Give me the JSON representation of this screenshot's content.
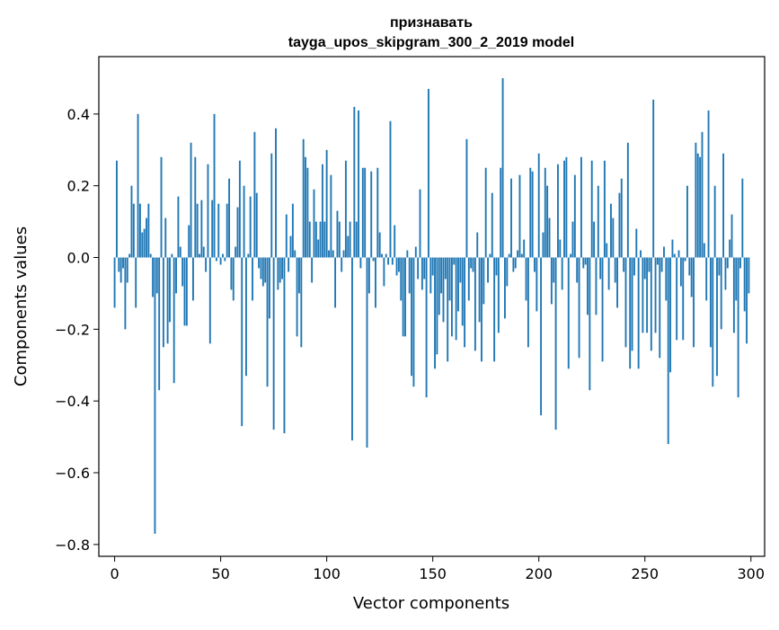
{
  "chart_data": {
    "type": "bar",
    "title_line1": "признавать",
    "title_line2": "tayga_upos_skipgram_300_2_2019 model",
    "xlabel": "Vector components",
    "ylabel": "Components values",
    "xlim": [
      -7.45,
      306.45
    ],
    "ylim": [
      -0.833,
      0.56
    ],
    "xticks": [
      0,
      50,
      100,
      150,
      200,
      250,
      300
    ],
    "xtick_labels": [
      "0",
      "50",
      "100",
      "150",
      "200",
      "250",
      "300"
    ],
    "yticks": [
      -0.8,
      -0.6,
      -0.4,
      -0.2,
      0.0,
      0.2,
      0.4
    ],
    "ytick_labels": [
      "−0.8",
      "−0.6",
      "−0.4",
      "−0.2",
      "0.0",
      "0.2",
      "0.4"
    ],
    "bar_color": "#1f77b4",
    "grid": false,
    "values": [
      -0.14,
      0.27,
      -0.04,
      -0.07,
      -0.03,
      -0.2,
      -0.07,
      0.01,
      0.2,
      0.15,
      -0.14,
      0.4,
      0.15,
      0.07,
      0.08,
      0.11,
      0.15,
      0.01,
      -0.11,
      -0.77,
      -0.1,
      -0.37,
      0.28,
      -0.25,
      0.11,
      -0.24,
      -0.18,
      0.01,
      -0.35,
      -0.1,
      0.17,
      0.03,
      -0.08,
      -0.19,
      -0.19,
      0.09,
      0.32,
      -0.12,
      0.28,
      0.15,
      0.01,
      0.16,
      0.03,
      -0.04,
      0.26,
      -0.24,
      0.16,
      0.4,
      -0.01,
      0.15,
      -0.02,
      0.01,
      -0.01,
      0.15,
      0.22,
      -0.09,
      -0.12,
      0.03,
      0.14,
      0.27,
      -0.47,
      0.2,
      -0.33,
      0.01,
      0.17,
      -0.12,
      0.35,
      0.18,
      -0.03,
      -0.06,
      -0.08,
      -0.07,
      -0.36,
      -0.17,
      0.29,
      -0.48,
      0.36,
      -0.09,
      -0.07,
      -0.06,
      -0.49,
      0.12,
      -0.04,
      0.06,
      0.15,
      0.02,
      -0.22,
      -0.1,
      -0.25,
      0.33,
      0.28,
      0.25,
      0.1,
      -0.07,
      0.19,
      0.1,
      0.05,
      0.1,
      0.26,
      0.1,
      0.3,
      0.02,
      0.23,
      0.02,
      -0.14,
      0.13,
      0.1,
      -0.04,
      0.02,
      0.27,
      0.06,
      0.1,
      -0.51,
      0.42,
      0.1,
      0.41,
      -0.03,
      0.25,
      0.25,
      -0.53,
      -0.1,
      0.24,
      -0.01,
      -0.14,
      0.25,
      0.07,
      0.01,
      -0.08,
      0.01,
      -0.02,
      0.38,
      -0.02,
      0.09,
      -0.05,
      -0.04,
      -0.12,
      -0.22,
      -0.22,
      0.02,
      -0.1,
      -0.33,
      -0.36,
      0.03,
      -0.06,
      0.19,
      -0.09,
      -0.06,
      -0.39,
      0.47,
      -0.1,
      -0.05,
      -0.31,
      -0.27,
      -0.16,
      -0.1,
      -0.18,
      -0.06,
      -0.29,
      -0.12,
      -0.22,
      -0.02,
      -0.23,
      -0.15,
      -0.07,
      -0.19,
      -0.25,
      0.33,
      -0.12,
      -0.03,
      -0.04,
      -0.26,
      0.07,
      -0.18,
      -0.29,
      -0.13,
      0.25,
      -0.07,
      0.01,
      0.18,
      -0.29,
      -0.05,
      -0.21,
      0.25,
      0.5,
      -0.17,
      -0.08,
      0.01,
      0.22,
      -0.04,
      -0.03,
      0.02,
      0.23,
      0.01,
      0.05,
      -0.12,
      -0.25,
      0.25,
      0.24,
      -0.04,
      -0.15,
      0.29,
      -0.44,
      0.07,
      0.25,
      0.2,
      0.11,
      -0.13,
      -0.07,
      -0.48,
      0.26,
      0.05,
      -0.09,
      0.27,
      0.28,
      -0.31,
      0.01,
      0.1,
      0.23,
      -0.07,
      -0.28,
      0.28,
      -0.03,
      -0.02,
      -0.16,
      -0.37,
      0.27,
      0.1,
      -0.16,
      0.2,
      -0.06,
      -0.29,
      0.27,
      0.04,
      -0.09,
      0.15,
      0.11,
      -0.07,
      -0.14,
      0.18,
      0.22,
      -0.04,
      -0.25,
      0.32,
      -0.31,
      -0.26,
      -0.05,
      0.08,
      -0.31,
      0.02,
      -0.21,
      -0.06,
      -0.21,
      -0.04,
      -0.26,
      0.44,
      -0.21,
      -0.02,
      -0.28,
      -0.04,
      0.03,
      -0.12,
      -0.52,
      -0.32,
      0.05,
      0.01,
      -0.23,
      0.02,
      -0.08,
      -0.23,
      -0.01,
      0.2,
      -0.05,
      -0.11,
      -0.25,
      0.32,
      0.29,
      0.28,
      0.35,
      0.04,
      -0.12,
      0.41,
      -0.25,
      -0.36,
      0.2,
      -0.33,
      -0.05,
      -0.2,
      0.29,
      -0.09,
      -0.03,
      0.05,
      0.12,
      -0.21,
      -0.12,
      -0.39,
      -0.03,
      0.22,
      -0.15,
      -0.24,
      -0.1
    ]
  }
}
